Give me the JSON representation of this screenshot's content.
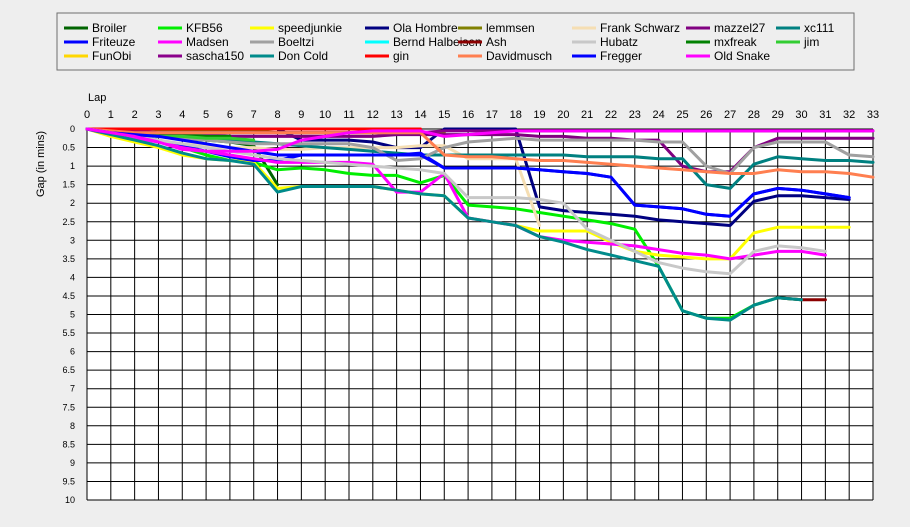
{
  "chart_data": {
    "type": "line",
    "title": "",
    "xlabel": "Lap",
    "ylabel": "Gap (in mins)",
    "xlim": [
      0,
      33
    ],
    "ylim": [
      0,
      10
    ],
    "y_inverted": true,
    "grid": true,
    "legend_position": "top",
    "x_ticks": [
      "0",
      "1",
      "2",
      "3",
      "4",
      "5",
      "6",
      "7",
      "8",
      "9",
      "10",
      "11",
      "12",
      "13",
      "14",
      "15",
      "16",
      "17",
      "18",
      "19",
      "20",
      "21",
      "22",
      "23",
      "24",
      "25",
      "26",
      "27",
      "28",
      "29",
      "30",
      "31",
      "32",
      "33"
    ],
    "y_ticks": [
      "0",
      "0.5",
      "1",
      "1.5",
      "2",
      "2.5",
      "3",
      "3.5",
      "4",
      "4.5",
      "5",
      "5.5",
      "6",
      "6.5",
      "7",
      "7.5",
      "8",
      "8.5",
      "9",
      "9.5",
      "10"
    ],
    "series": [
      {
        "name": "Broiler",
        "color": "#006400",
        "x": [
          0,
          1,
          2,
          3,
          4,
          5,
          6,
          7,
          8
        ],
        "y": [
          0,
          0.1,
          0.15,
          0.2,
          0.25,
          0.3,
          0.35,
          0.45,
          1.5
        ]
      },
      {
        "name": "KFB56",
        "color": "#00ee00",
        "x": [
          0,
          1,
          2,
          3,
          4,
          5,
          6,
          7,
          8,
          9,
          10,
          11,
          12,
          13,
          14,
          15,
          16,
          17,
          18,
          19,
          20,
          21,
          22,
          23,
          24,
          25,
          26,
          27,
          28,
          29,
          30
        ],
        "y": [
          0,
          0.1,
          0.2,
          0.3,
          0.5,
          0.7,
          0.85,
          0.9,
          1.1,
          1.05,
          1.1,
          1.2,
          1.25,
          1.25,
          1.45,
          1.25,
          2.05,
          2.1,
          2.15,
          2.25,
          2.35,
          2.45,
          2.55,
          2.7,
          3.7,
          4.9,
          5.1,
          5.1,
          4.75,
          4.55,
          4.6
        ]
      },
      {
        "name": "speedjunkie",
        "color": "#ffff00",
        "x": [
          0,
          1,
          2,
          3,
          4,
          5,
          6,
          7,
          8,
          9,
          10,
          11,
          12,
          13,
          14,
          15,
          16,
          17,
          18,
          19,
          20,
          21,
          22,
          23,
          24,
          25,
          26,
          27,
          28,
          29,
          30,
          31,
          32
        ],
        "y": [
          0,
          0.2,
          0.35,
          0.5,
          0.7,
          0.8,
          0.85,
          0.9,
          1.6,
          1.55,
          1.55,
          1.55,
          1.55,
          1.65,
          1.75,
          1.8,
          2.4,
          2.5,
          2.6,
          2.75,
          2.75,
          2.75,
          3.05,
          3.3,
          3.4,
          3.45,
          3.5,
          3.5,
          2.8,
          2.65,
          2.65,
          2.65,
          2.65
        ]
      },
      {
        "name": "Ola Hombre",
        "color": "#000080",
        "x": [
          0,
          1,
          2,
          3,
          4,
          5,
          6,
          7,
          8,
          9,
          10,
          11,
          12,
          13,
          14,
          15,
          16,
          17,
          18,
          19,
          20,
          21,
          22,
          23,
          24,
          25,
          26,
          27,
          28,
          29,
          30,
          31,
          32
        ],
        "y": [
          0,
          0,
          0,
          0,
          0,
          0,
          0,
          0,
          0,
          0.3,
          0.3,
          0.3,
          0.35,
          0.5,
          0.5,
          0,
          0,
          0,
          0,
          2.1,
          2.2,
          2.25,
          2.3,
          2.35,
          2.45,
          2.5,
          2.55,
          2.6,
          1.95,
          1.8,
          1.8,
          1.85,
          1.9
        ]
      },
      {
        "name": "lemmsen",
        "color": "#808000",
        "x": [
          0,
          1,
          2,
          3,
          4,
          5,
          6,
          7,
          8,
          9,
          10,
          11,
          12,
          13,
          14,
          15
        ],
        "y": [
          0,
          0,
          0.05,
          0.05,
          0.05,
          0.05,
          0.05,
          0.05,
          0.1,
          0.1,
          0.1,
          0.1,
          0.1,
          0.1,
          0.1,
          0.1
        ]
      },
      {
        "name": "Frank Schwarz",
        "color": "#f5deb3",
        "x": [
          0,
          1,
          2,
          3,
          4,
          5,
          6,
          7,
          8,
          9,
          10,
          11,
          12,
          13,
          14,
          15,
          16,
          17,
          18,
          19
        ],
        "y": [
          0,
          0.1,
          0.2,
          0.3,
          0.4,
          0.45,
          0.5,
          0.5,
          0.55,
          0.55,
          0.5,
          0.5,
          0.5,
          0.5,
          0.45,
          0.45,
          0.8,
          0.8,
          0.8,
          2.6
        ]
      },
      {
        "name": "mazzel27",
        "color": "#800080",
        "x": [
          0,
          1,
          2,
          3,
          4,
          5,
          6,
          7,
          8,
          9,
          10,
          11,
          12,
          13,
          14,
          15,
          16,
          17,
          18,
          19,
          20,
          21,
          22,
          23,
          24,
          25,
          26,
          27,
          28,
          29,
          30,
          31,
          32,
          33
        ],
        "y": [
          0,
          0.05,
          0.1,
          0.1,
          0.15,
          0.15,
          0.2,
          0.2,
          0.2,
          0.2,
          0.2,
          0.2,
          0.2,
          0.15,
          0.15,
          0.15,
          0.15,
          0.15,
          0.15,
          0.2,
          0.2,
          0.25,
          0.25,
          0.3,
          0.3,
          1,
          1.15,
          1.15,
          0.5,
          0.25,
          0.25,
          0.25,
          0.25,
          0.25
        ]
      },
      {
        "name": "xc111",
        "color": "#008080",
        "x": [
          0,
          1,
          2,
          3,
          4,
          5,
          6,
          7,
          8,
          9,
          10,
          11,
          12,
          13,
          14,
          15,
          16,
          17,
          18,
          19,
          20,
          21,
          22,
          23,
          24,
          25,
          26,
          27,
          28,
          29,
          30,
          31,
          32,
          33
        ],
        "y": [
          0,
          0.05,
          0.1,
          0.15,
          0.2,
          0.25,
          0.3,
          0.35,
          0.4,
          0.45,
          0.5,
          0.55,
          0.6,
          0.65,
          0.7,
          0.7,
          0.7,
          0.7,
          0.7,
          0.7,
          0.7,
          0.75,
          0.75,
          0.75,
          0.8,
          0.8,
          1.5,
          1.6,
          0.95,
          0.75,
          0.8,
          0.85,
          0.85,
          0.9
        ]
      },
      {
        "name": "Friteuze",
        "color": "#0000ff",
        "x": [
          0,
          1,
          2,
          3,
          4,
          5,
          6,
          7,
          8,
          9,
          10,
          11,
          12,
          13,
          14,
          15,
          16,
          17,
          18,
          19,
          20,
          21,
          22,
          23,
          24,
          25,
          26,
          27,
          28,
          29,
          30,
          31,
          32
        ],
        "y": [
          0,
          0.1,
          0.2,
          0.3,
          0.45,
          0.6,
          0.75,
          0.85,
          0.85,
          0.7,
          0.7,
          0.7,
          0.7,
          0.7,
          0.65,
          1.05,
          1.05,
          1.05,
          1.05,
          1.1,
          1.15,
          1.2,
          1.3,
          2.05,
          2.1,
          2.15,
          2.3,
          2.35,
          1.75,
          1.6,
          1.65,
          1.75,
          1.85
        ]
      },
      {
        "name": "Madsen",
        "color": "#ff00ff",
        "x": [
          0,
          1,
          2,
          3,
          4,
          5,
          6,
          7,
          8,
          9,
          10,
          11,
          12,
          13,
          14,
          15,
          16,
          17,
          18,
          19,
          20,
          21,
          22,
          23,
          24,
          25,
          26,
          27,
          28,
          29,
          30,
          31
        ],
        "y": [
          0,
          0.15,
          0.25,
          0.35,
          0.5,
          0.6,
          0.7,
          0.8,
          0.9,
          0.9,
          0.9,
          0.9,
          0.95,
          1.7,
          1.7,
          1.2,
          2.4,
          2.5,
          2.6,
          2.9,
          3.0,
          3.05,
          3.1,
          3.15,
          3.25,
          3.35,
          3.4,
          3.5,
          3.4,
          3.3,
          3.3,
          3.4
        ]
      },
      {
        "name": "Boeltzi",
        "color": "#a0a0a0",
        "x": [
          0,
          1,
          2,
          3,
          4,
          5,
          6,
          7,
          8,
          9,
          10,
          11,
          12,
          13,
          14,
          15,
          16,
          17,
          18,
          19,
          20,
          21,
          22,
          23,
          24,
          25,
          26,
          27,
          28,
          29,
          30,
          31,
          32,
          33
        ],
        "y": [
          0,
          0.05,
          0.1,
          0.2,
          0.25,
          0.3,
          0.35,
          0.4,
          0.4,
          0.4,
          0.4,
          0.4,
          0.5,
          0.85,
          0.8,
          0.5,
          0.35,
          0.3,
          0.25,
          0.3,
          0.3,
          0.3,
          0.3,
          0.3,
          0.35,
          0.35,
          1,
          1.2,
          0.5,
          0.35,
          0.35,
          0.35,
          0.7,
          0.75
        ]
      },
      {
        "name": "Bernd Halbeisen",
        "color": "#00ffff",
        "x": [
          0,
          1,
          2,
          3,
          4,
          5,
          6,
          7
        ],
        "y": [
          0,
          0.05,
          0.05,
          0.1,
          0.1,
          0.1,
          0.1,
          0.1
        ]
      },
      {
        "name": "Ash",
        "color": "#8b0000",
        "x": [
          29,
          30,
          31
        ],
        "y": [
          4.55,
          4.6,
          4.6
        ]
      },
      {
        "name": "Hubatz",
        "color": "#c8c8c8",
        "x": [
          0,
          1,
          2,
          3,
          4,
          5,
          6,
          7,
          8,
          9,
          10,
          11,
          12,
          13,
          14,
          15,
          16,
          17,
          18,
          19,
          20,
          21,
          22,
          23,
          24,
          25,
          26,
          27,
          28,
          29,
          30,
          31
        ],
        "y": [
          0,
          0.1,
          0.2,
          0.3,
          0.4,
          0.5,
          0.6,
          0.7,
          0.8,
          0.85,
          0.9,
          0.95,
          1,
          1.05,
          1.1,
          1.2,
          1.85,
          1.85,
          1.85,
          1.9,
          2.0,
          2.7,
          3.0,
          3.3,
          3.6,
          3.75,
          3.85,
          3.9,
          3.3,
          3.15,
          3.2,
          3.3
        ]
      },
      {
        "name": "mxfreak",
        "color": "#008000",
        "x": [
          0,
          1,
          2,
          3,
          4,
          5,
          6
        ],
        "y": [
          0,
          0.05,
          0.1,
          0.15,
          0.15,
          0.2,
          0.2
        ]
      },
      {
        "name": "jim",
        "color": "#32cd32",
        "x": [
          0,
          1,
          2,
          3,
          4,
          5,
          6,
          7
        ],
        "y": [
          0,
          0.1,
          0.15,
          0.2,
          0.2,
          0.25,
          0.25,
          0.3
        ]
      },
      {
        "name": "FunObi",
        "color": "#ffd700",
        "x": [
          0,
          1,
          2,
          3
        ],
        "y": [
          0,
          0.05,
          0.05,
          0.1
        ]
      },
      {
        "name": "sascha150",
        "color": "#8b008b",
        "x": [
          0,
          1,
          2,
          3,
          4,
          5,
          6,
          7,
          8,
          9,
          10,
          11,
          12,
          13,
          14,
          15,
          16,
          17,
          18,
          19,
          20,
          21,
          22,
          23,
          24,
          25,
          26,
          27,
          28,
          29,
          30,
          31,
          32,
          33
        ],
        "y": [
          0,
          0.05,
          0.05,
          0.1,
          0.1,
          0.1,
          0.1,
          0.1,
          0.1,
          0.1,
          0.1,
          0.1,
          0.1,
          0.1,
          0.1,
          0.05,
          0.05,
          0.05,
          0.05,
          0.05,
          0.05,
          0.05,
          0.05,
          0.05,
          0.05,
          0.05,
          0.05,
          0.05,
          0.05,
          0.05,
          0.05,
          0.05,
          0.05,
          0.05
        ]
      },
      {
        "name": "Don Cold",
        "color": "#008b8b",
        "x": [
          0,
          1,
          2,
          3,
          4,
          5,
          6,
          7,
          8,
          9,
          10,
          11,
          12,
          13,
          14,
          15,
          16,
          17,
          18,
          19,
          20,
          21,
          22,
          23,
          24,
          25,
          26,
          27,
          28,
          29,
          30
        ],
        "y": [
          0,
          0.15,
          0.3,
          0.45,
          0.65,
          0.8,
          0.85,
          0.95,
          1.7,
          1.55,
          1.55,
          1.55,
          1.55,
          1.65,
          1.75,
          1.8,
          2.4,
          2.5,
          2.6,
          2.9,
          3.05,
          3.25,
          3.4,
          3.55,
          3.7,
          4.9,
          5.1,
          5.15,
          4.75,
          4.55,
          4.6
        ]
      },
      {
        "name": "gin",
        "color": "#ff0000",
        "x": [
          0,
          1,
          2,
          3,
          4,
          5,
          6,
          7,
          8,
          9,
          10,
          11,
          12,
          13,
          14
        ],
        "y": [
          0,
          0,
          0,
          0,
          0,
          0,
          0,
          0,
          0,
          0,
          0,
          0,
          0,
          0,
          0
        ]
      },
      {
        "name": "Davidmusch",
        "color": "#ff7f50",
        "x": [
          0,
          1,
          2,
          3,
          4,
          5,
          6,
          7,
          8,
          9,
          10,
          11,
          12,
          13,
          14,
          15,
          16,
          17,
          18,
          19,
          20,
          21,
          22,
          23,
          24,
          25,
          26,
          27,
          28,
          29,
          30,
          31,
          32,
          33
        ],
        "y": [
          0,
          0.05,
          0.1,
          0.1,
          0.1,
          0.1,
          0.1,
          0.1,
          0.1,
          0.1,
          0.1,
          0.1,
          0.1,
          0.1,
          0.1,
          0.7,
          0.75,
          0.75,
          0.8,
          0.85,
          0.85,
          0.9,
          0.95,
          1,
          1.05,
          1.1,
          1.15,
          1.2,
          1.2,
          1.1,
          1.15,
          1.15,
          1.2,
          1.3
        ]
      },
      {
        "name": "Fregger",
        "color": "#0000ff",
        "x": [
          0,
          1,
          2,
          3,
          4,
          5,
          6,
          7,
          8,
          9,
          10,
          11,
          12,
          13,
          14,
          15,
          16,
          17,
          18,
          19,
          20,
          21,
          22,
          23,
          24,
          25,
          26,
          27,
          28,
          29,
          30,
          31,
          32
        ],
        "y": [
          0,
          0.1,
          0.15,
          0.2,
          0.3,
          0.4,
          0.5,
          0.6,
          0.7,
          0.7,
          0.7,
          0.7,
          0.7,
          0.7,
          0.7,
          1.05,
          1.05,
          1.05,
          1.05,
          1.1,
          1.15,
          1.2,
          1.3,
          2.05,
          2.1,
          2.15,
          2.3,
          2.35,
          1.75,
          1.6,
          1.65,
          1.75,
          1.85
        ]
      },
      {
        "name": "Old Snake",
        "color": "#ff00ff",
        "x": [
          0,
          1,
          2,
          3,
          4,
          5,
          6,
          7,
          8,
          9,
          10,
          11,
          12,
          13,
          14,
          15,
          16,
          17,
          18,
          19,
          20,
          21,
          22,
          23,
          24,
          25,
          26,
          27,
          28,
          29,
          30,
          31,
          32,
          33
        ],
        "y": [
          0,
          0.1,
          0.2,
          0.35,
          0.55,
          0.6,
          0.6,
          0.6,
          0.55,
          0.3,
          0.2,
          0.1,
          0.05,
          0.05,
          0.05,
          0.2,
          0.15,
          0.1,
          0.05,
          0.05,
          0.05,
          0.05,
          0.05,
          0.05,
          0.05,
          0.05,
          0.05,
          0.05,
          0.05,
          0.05,
          0.05,
          0.05,
          0.05,
          0.05
        ]
      }
    ]
  }
}
